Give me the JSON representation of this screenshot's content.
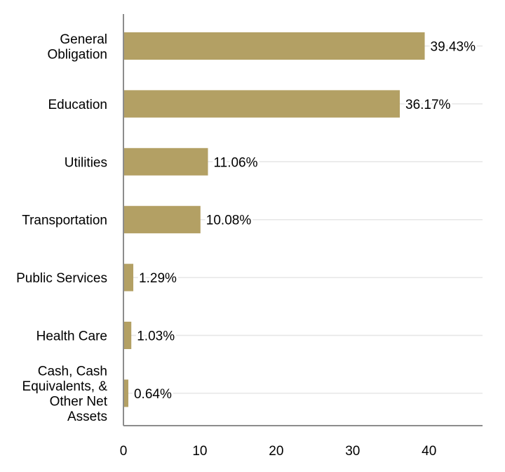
{
  "chart_data": {
    "type": "bar",
    "orientation": "horizontal",
    "categories": [
      [
        "General",
        "Obligation"
      ],
      [
        "Education"
      ],
      [
        "Utilities"
      ],
      [
        "Transportation"
      ],
      [
        "Public Services"
      ],
      [
        "Health Care"
      ],
      [
        "Cash, Cash",
        "Equivalents, &",
        "Other Net",
        "Assets"
      ]
    ],
    "values": [
      39.43,
      36.17,
      11.06,
      10.08,
      1.29,
      1.03,
      0.64
    ],
    "data_labels": [
      "39.43%",
      "36.17%",
      "11.06%",
      "10.08%",
      "1.29%",
      "1.03%",
      "0.64%"
    ],
    "xticks": [
      "0",
      "10",
      "20",
      "30",
      "40"
    ],
    "xlim": [
      0,
      47
    ],
    "title": "",
    "xlabel": "",
    "ylabel": "",
    "grid": "horizontal at bar centers",
    "legend": "none",
    "colors": {
      "bar": "#b3a064",
      "axis": "#8c8c8c",
      "grid": "#e6e6e6",
      "text": "#000000"
    }
  }
}
